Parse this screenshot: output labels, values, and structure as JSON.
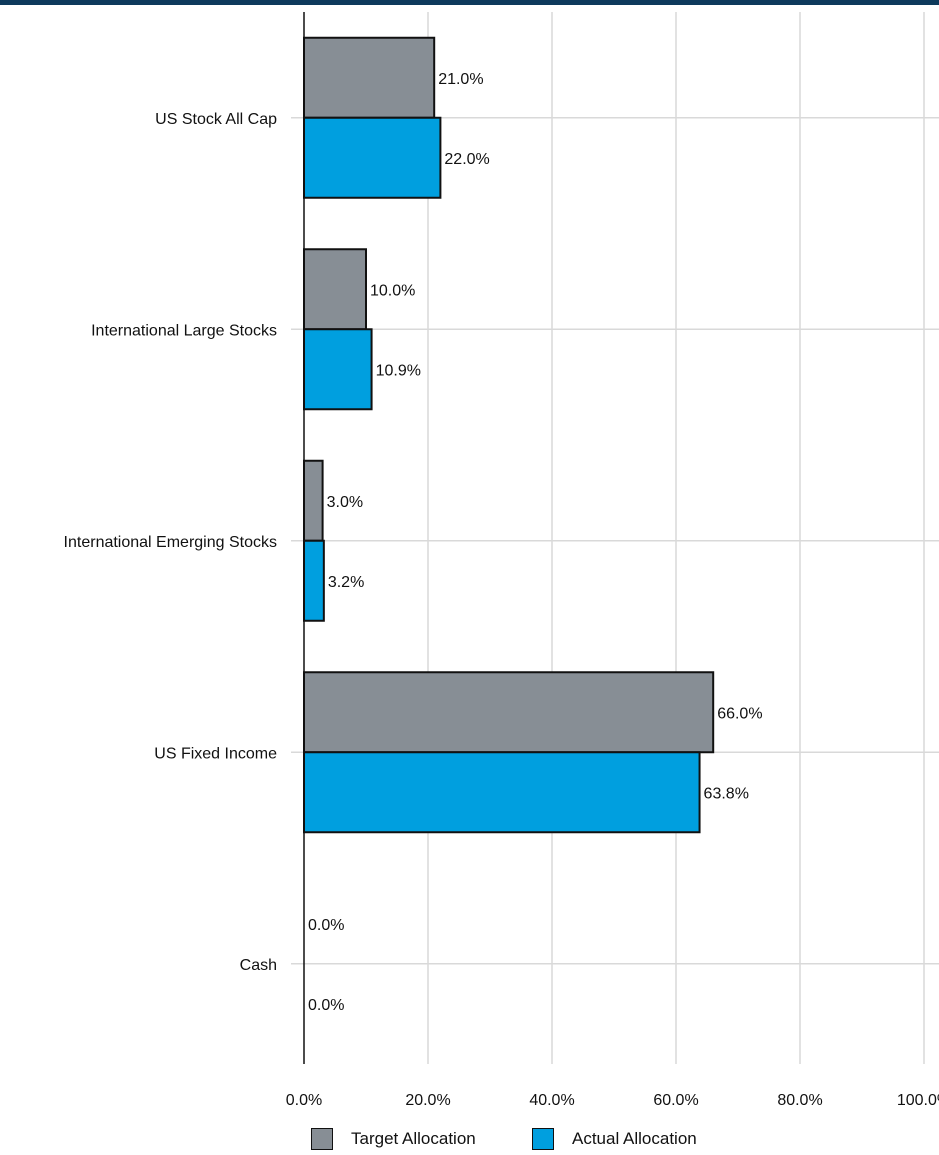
{
  "chart_data": {
    "type": "bar",
    "orientation": "horizontal",
    "categories": [
      "US Stock All Cap",
      "International Large Stocks",
      "International Emerging Stocks",
      "US Fixed Income",
      "Cash"
    ],
    "series": [
      {
        "name": "Target Allocation",
        "color": "#878e95",
        "values": [
          21.0,
          10.0,
          3.0,
          66.0,
          0.0
        ],
        "labels": [
          "21.0%",
          "10.0%",
          "3.0%",
          "66.0%",
          "0.0%"
        ]
      },
      {
        "name": "Actual Allocation",
        "color": "#009fdf",
        "values": [
          22.0,
          10.9,
          3.2,
          63.8,
          0.0
        ],
        "labels": [
          "22.0%",
          "10.9%",
          "3.2%",
          "63.8%",
          "0.0%"
        ]
      }
    ],
    "xlim": [
      0,
      100
    ],
    "x_ticks": [
      0,
      20,
      40,
      60,
      80,
      100
    ],
    "x_tick_labels": [
      "0.0%",
      "20.0%",
      "40.0%",
      "60.0%",
      "80.0%",
      "100.0%"
    ],
    "grid": true,
    "legend_position": "bottom"
  },
  "colors": {
    "header_rule": "#0e3a5c",
    "grid": "#d9d9d9"
  }
}
